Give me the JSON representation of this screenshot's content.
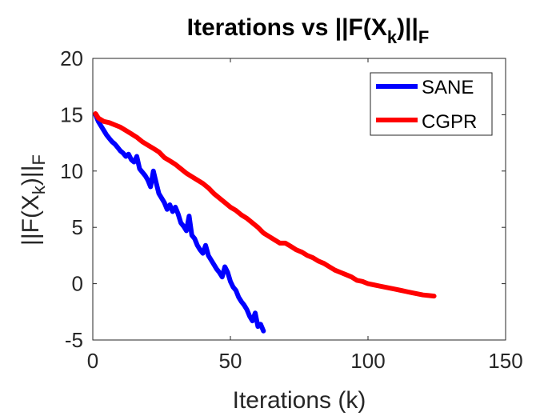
{
  "chart_data": {
    "type": "line",
    "title": {
      "main": "Iterations vs ||F(X",
      "sub_k": "k",
      "close": ")||",
      "sub_F": "F"
    },
    "xlabel": "Iterations (k)",
    "ylabel": {
      "main": "||F(X",
      "sub_k": "k",
      "close": ")||",
      "sub_F": "F"
    },
    "xlim": [
      0,
      150
    ],
    "ylim": [
      -5,
      20
    ],
    "xticks": [
      0,
      50,
      100,
      150
    ],
    "yticks": [
      -5,
      0,
      5,
      10,
      15,
      20
    ],
    "grid": false,
    "legend_position": "top-right",
    "series": [
      {
        "name": "SANE",
        "color": "#0000FF",
        "x": [
          1,
          2,
          3,
          4,
          5,
          6,
          7,
          8,
          9,
          10,
          11,
          12,
          13,
          14,
          15,
          16,
          17,
          18,
          19,
          20,
          21,
          22,
          23,
          24,
          25,
          26,
          27,
          28,
          29,
          30,
          31,
          32,
          33,
          34,
          35,
          36,
          37,
          38,
          39,
          40,
          41,
          42,
          43,
          44,
          45,
          46,
          47,
          48,
          49,
          50,
          51,
          52,
          53,
          54,
          55,
          56,
          57,
          58,
          59,
          60,
          61,
          62
        ],
        "y": [
          15.0,
          14.4,
          14.0,
          13.6,
          13.2,
          12.9,
          12.6,
          12.4,
          12.1,
          11.8,
          11.6,
          11.3,
          11.5,
          11.0,
          10.8,
          11.3,
          10.2,
          9.9,
          9.6,
          9.2,
          8.6,
          10.0,
          9.0,
          8.0,
          7.6,
          7.2,
          6.6,
          7.0,
          6.4,
          6.8,
          6.2,
          5.4,
          5.1,
          4.7,
          6.0,
          4.3,
          4.0,
          3.4,
          3.0,
          2.7,
          3.4,
          2.5,
          2.1,
          1.7,
          1.3,
          1.0,
          0.6,
          1.5,
          1.0,
          0.2,
          -0.3,
          -0.6,
          -1.2,
          -1.6,
          -1.9,
          -2.3,
          -2.9,
          -3.3,
          -2.6,
          -3.8,
          -3.6,
          -4.2
        ]
      },
      {
        "name": "CGPR",
        "color": "#FF0000",
        "x": [
          1,
          2,
          4,
          6,
          8,
          10,
          12,
          14,
          16,
          18,
          20,
          22,
          24,
          26,
          28,
          30,
          32,
          34,
          36,
          38,
          40,
          42,
          44,
          46,
          48,
          50,
          52,
          54,
          56,
          58,
          60,
          62,
          64,
          66,
          68,
          70,
          72,
          74,
          76,
          78,
          80,
          82,
          84,
          86,
          88,
          90,
          92,
          94,
          96,
          98,
          100,
          102,
          104,
          106,
          108,
          110,
          112,
          114,
          116,
          118,
          120,
          122,
          124
        ],
        "y": [
          15.1,
          14.7,
          14.4,
          14.3,
          14.1,
          13.9,
          13.6,
          13.3,
          13.0,
          12.6,
          12.3,
          12.0,
          11.7,
          11.2,
          10.9,
          10.6,
          10.2,
          9.8,
          9.5,
          9.2,
          8.9,
          8.5,
          8.0,
          7.6,
          7.2,
          6.8,
          6.5,
          6.1,
          5.8,
          5.4,
          5.0,
          4.5,
          4.2,
          3.9,
          3.6,
          3.6,
          3.3,
          3.0,
          2.8,
          2.5,
          2.3,
          2.0,
          1.8,
          1.5,
          1.2,
          1.0,
          0.8,
          0.6,
          0.3,
          0.2,
          0.0,
          -0.1,
          -0.2,
          -0.3,
          -0.4,
          -0.5,
          -0.6,
          -0.7,
          -0.8,
          -0.9,
          -1.0,
          -1.05,
          -1.1
        ]
      }
    ]
  }
}
